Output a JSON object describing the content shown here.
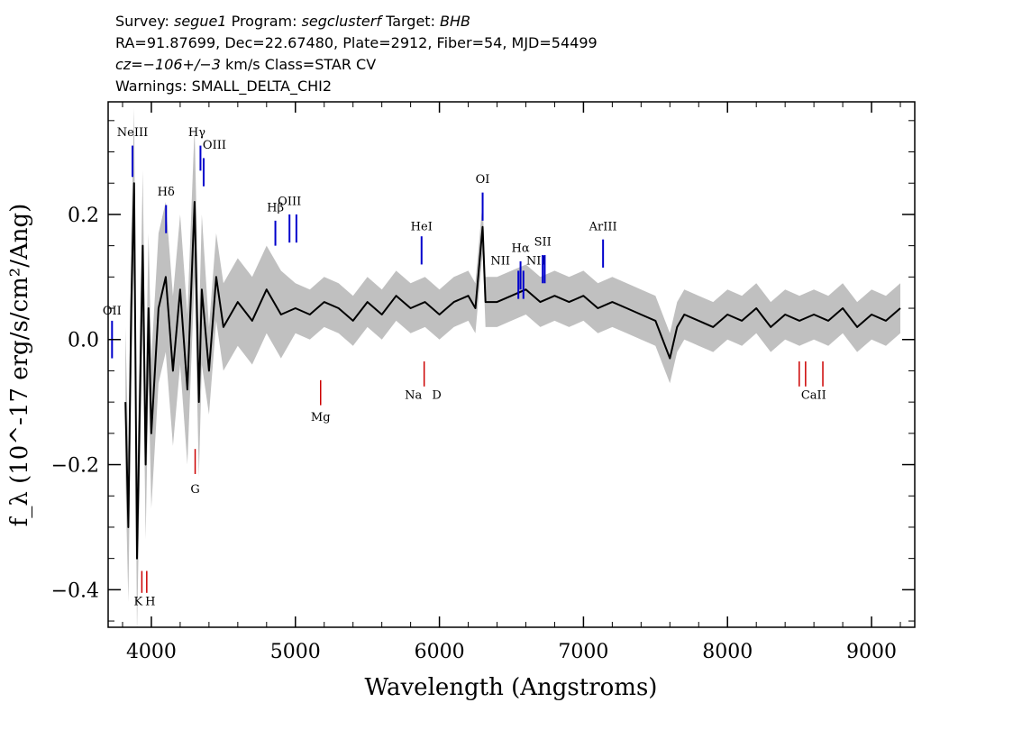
{
  "header": {
    "line1": {
      "survey_label": "Survey:",
      "survey": "segue1",
      "program_label": "Program:",
      "program": "segclusterf",
      "target_label": "Target:",
      "target": "BHB"
    },
    "line2": "RA=91.87699, Dec=22.67480, Plate=2912, Fiber=54, MJD=54499",
    "line3": {
      "cz": "cz=−106+/−3",
      "rest": "km/s Class=STAR CV"
    },
    "line4": "Warnings: SMALL_DELTA_CHI2"
  },
  "colors": {
    "flux": "#000000",
    "error": "#c0c0c0",
    "emission": "#0000cc",
    "absorption": "#cc0000"
  },
  "chart_data": {
    "type": "line",
    "xlabel": "Wavelength (Angstroms)",
    "ylabel": "f_λ (10^-17 erg/s/cm²/Ang)",
    "xlim": [
      3700,
      9300
    ],
    "ylim": [
      -0.46,
      0.38
    ],
    "xticks": [
      4000,
      5000,
      6000,
      7000,
      8000,
      9000
    ],
    "yticks": [
      -0.4,
      -0.2,
      0.0,
      0.2
    ],
    "ytick_labels": [
      "−0.4",
      "−0.2",
      "0.0",
      "0.2"
    ],
    "series": [
      {
        "role": "flux",
        "x": [
          3820,
          3840,
          3860,
          3880,
          3900,
          3920,
          3940,
          3960,
          3980,
          4000,
          4050,
          4100,
          4150,
          4200,
          4250,
          4300,
          4330,
          4350,
          4400,
          4450,
          4500,
          4600,
          4700,
          4800,
          4900,
          5000,
          5100,
          5200,
          5300,
          5400,
          5500,
          5600,
          5700,
          5800,
          5900,
          6000,
          6100,
          6200,
          6250,
          6300,
          6320,
          6400,
          6500,
          6600,
          6700,
          6800,
          6900,
          7000,
          7100,
          7200,
          7300,
          7400,
          7500,
          7600,
          7650,
          7700,
          7800,
          7900,
          8000,
          8100,
          8200,
          8300,
          8400,
          8500,
          8600,
          8700,
          8800,
          8900,
          9000,
          9100,
          9200
        ],
        "y": [
          -0.1,
          -0.3,
          0.05,
          0.25,
          -0.35,
          -0.1,
          0.15,
          -0.2,
          0.05,
          -0.15,
          0.05,
          0.1,
          -0.05,
          0.08,
          -0.08,
          0.22,
          -0.1,
          0.08,
          -0.05,
          0.1,
          0.02,
          0.06,
          0.03,
          0.08,
          0.04,
          0.05,
          0.04,
          0.06,
          0.05,
          0.03,
          0.06,
          0.04,
          0.07,
          0.05,
          0.06,
          0.04,
          0.06,
          0.07,
          0.05,
          0.18,
          0.06,
          0.06,
          0.07,
          0.08,
          0.06,
          0.07,
          0.06,
          0.07,
          0.05,
          0.06,
          0.05,
          0.04,
          0.03,
          -0.03,
          0.02,
          0.04,
          0.03,
          0.02,
          0.04,
          0.03,
          0.05,
          0.02,
          0.04,
          0.03,
          0.04,
          0.03,
          0.05,
          0.02,
          0.04,
          0.03,
          0.05
        ]
      }
    ],
    "emission_lines": [
      {
        "label": "OII",
        "wavelength": 3727
      },
      {
        "label": "NeIII",
        "wavelength": 3869
      },
      {
        "label": "Hδ",
        "wavelength": 4102
      },
      {
        "label": "Hγ",
        "wavelength": 4341
      },
      {
        "label": "OIII",
        "wavelength": 4363
      },
      {
        "label": "Hβ",
        "wavelength": 4861
      },
      {
        "label": "OIII",
        "wavelength": 4959
      },
      {
        "label": "OIII",
        "wavelength": 5007
      },
      {
        "label": "HeI",
        "wavelength": 5876
      },
      {
        "label": "OI",
        "wavelength": 6300
      },
      {
        "label": "NII",
        "wavelength": 6548
      },
      {
        "label": "Hα",
        "wavelength": 6563
      },
      {
        "label": "NII",
        "wavelength": 6583
      },
      {
        "label": "SII",
        "wavelength": 6717
      },
      {
        "label": "SII",
        "wavelength": 6731
      },
      {
        "label": "ArIII",
        "wavelength": 7136
      }
    ],
    "absorption_lines": [
      {
        "label": "K",
        "wavelength": 3934
      },
      {
        "label": "H",
        "wavelength": 3968
      },
      {
        "label": "G",
        "wavelength": 4304
      },
      {
        "label": "Mg",
        "wavelength": 5175
      },
      {
        "label": "Na",
        "wavelength": 5894
      },
      {
        "label": "D",
        "wavelength": 5894
      },
      {
        "label": "CaII",
        "wavelength": 8498
      },
      {
        "label": "CaII",
        "wavelength": 8542
      },
      {
        "label": "CaII",
        "wavelength": 8662
      }
    ],
    "grid": false
  }
}
